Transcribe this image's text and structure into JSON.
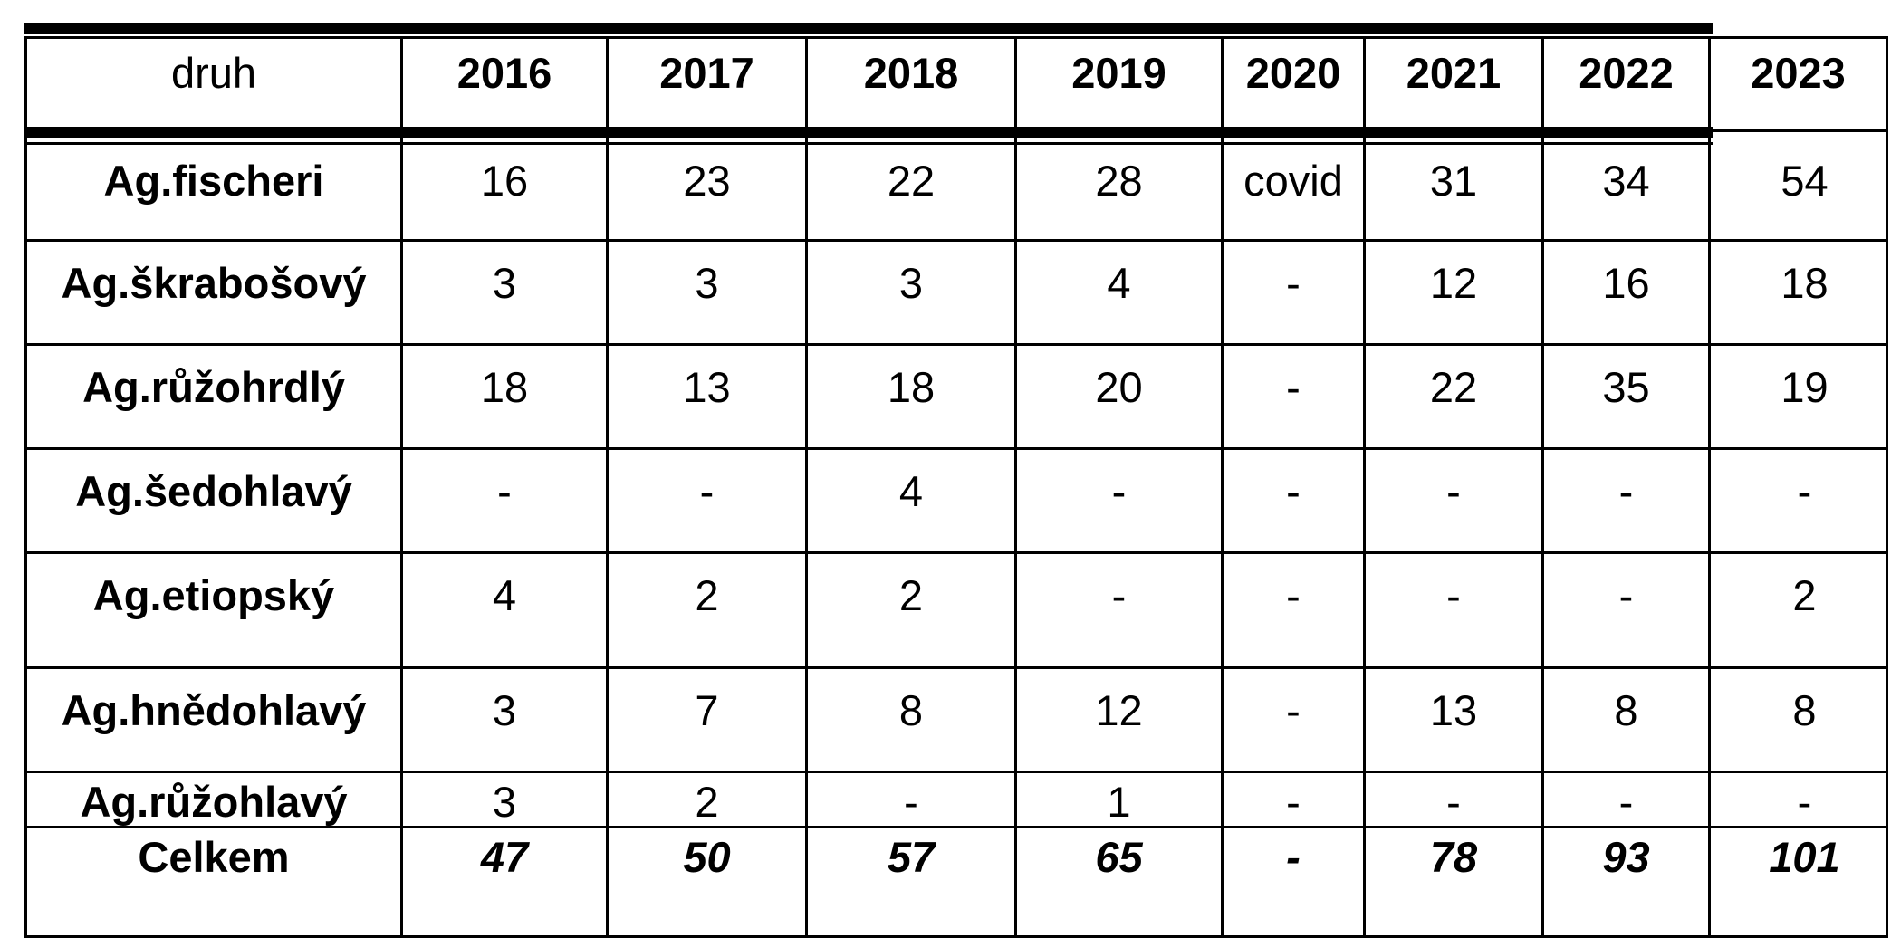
{
  "table": {
    "corner_label": "druh",
    "years": [
      "2016",
      "2017",
      "2018",
      "2019",
      "2020",
      "2021",
      "2022",
      "2023"
    ],
    "rows": [
      {
        "species": "Ag.fischeri",
        "values": [
          "16",
          "23",
          "22",
          "28",
          "covid",
          "31",
          "34",
          "54"
        ]
      },
      {
        "species": "Ag.škrabošový",
        "values": [
          "3",
          "3",
          "3",
          "4",
          "-",
          "12",
          "16",
          "18"
        ]
      },
      {
        "species": "Ag.růžohrdlý",
        "values": [
          "18",
          "13",
          "18",
          "20",
          "-",
          "22",
          "35",
          "19"
        ]
      },
      {
        "species": "Ag.šedohlavý",
        "values": [
          "-",
          "-",
          "4",
          "-",
          "-",
          "-",
          "-",
          "-"
        ]
      },
      {
        "species": "Ag.etiopský",
        "values": [
          "4",
          "2",
          "2",
          "-",
          "-",
          "-",
          "-",
          "2"
        ]
      },
      {
        "species": "Ag.hnědohlavý",
        "values": [
          "3",
          "7",
          "8",
          "12",
          "-",
          "13",
          "8",
          "8"
        ]
      },
      {
        "species": "Ag.růžohlavý",
        "values": [
          "3",
          "2",
          "-",
          "1",
          "-",
          "-",
          "-",
          "-"
        ]
      }
    ],
    "total": {
      "label": "Celkem",
      "values": [
        "47",
        "50",
        "57",
        "65",
        "-",
        "78",
        "93",
        "101"
      ]
    }
  }
}
